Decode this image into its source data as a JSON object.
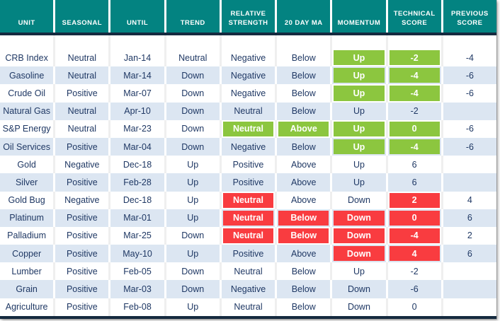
{
  "colors": {
    "header_bg": "#038381",
    "highlight_green": "#8CC63F",
    "highlight_red": "#F93C40",
    "row_stripe": "#DCE6F2",
    "body_text": "#1F3864",
    "divider_navy": "#152A3F"
  },
  "table": {
    "columns": [
      "UNIT",
      "SEASONAL",
      "UNTIL",
      "TREND",
      "RELATIVE STRENGTH",
      "20 DAY MA",
      "MOMENTUM",
      "TECHNICAL SCORE",
      "PREVIOUS SCORE"
    ],
    "column_keys": [
      "unit",
      "seasonal",
      "until",
      "trend",
      "relative-strength",
      "20-day-ma",
      "momentum",
      "technical-score",
      "previous-score"
    ],
    "rows": [
      {
        "cells": [
          {
            "t": "CRB Index"
          },
          {
            "t": "Neutral"
          },
          {
            "t": "Jan-14"
          },
          {
            "t": "Neutral"
          },
          {
            "t": "Negative"
          },
          {
            "t": "Below"
          },
          {
            "t": "Up",
            "h": "green"
          },
          {
            "t": "-2",
            "h": "green"
          },
          {
            "t": "-4"
          }
        ]
      },
      {
        "cells": [
          {
            "t": "Gasoline"
          },
          {
            "t": "Neutral"
          },
          {
            "t": "Mar-14"
          },
          {
            "t": "Down"
          },
          {
            "t": "Negative"
          },
          {
            "t": "Below"
          },
          {
            "t": "Up",
            "h": "green"
          },
          {
            "t": "-4",
            "h": "green"
          },
          {
            "t": "-6"
          }
        ]
      },
      {
        "cells": [
          {
            "t": "Crude Oil"
          },
          {
            "t": "Positive"
          },
          {
            "t": "Mar-07"
          },
          {
            "t": "Down"
          },
          {
            "t": "Negative"
          },
          {
            "t": "Below"
          },
          {
            "t": "Up",
            "h": "green"
          },
          {
            "t": "-4",
            "h": "green"
          },
          {
            "t": "-6"
          }
        ]
      },
      {
        "cells": [
          {
            "t": "Natural Gas"
          },
          {
            "t": "Neutral"
          },
          {
            "t": "Apr-10"
          },
          {
            "t": "Down"
          },
          {
            "t": "Neutral"
          },
          {
            "t": "Below"
          },
          {
            "t": "Up"
          },
          {
            "t": "-2"
          },
          {
            "t": ""
          }
        ]
      },
      {
        "cells": [
          {
            "t": "S&P Energy"
          },
          {
            "t": "Neutral"
          },
          {
            "t": "Mar-23"
          },
          {
            "t": "Down"
          },
          {
            "t": "Neutral",
            "h": "green"
          },
          {
            "t": "Above",
            "h": "green"
          },
          {
            "t": "Up",
            "h": "green"
          },
          {
            "t": "0",
            "h": "green"
          },
          {
            "t": "-6"
          }
        ]
      },
      {
        "cells": [
          {
            "t": "Oil Services"
          },
          {
            "t": "Positive"
          },
          {
            "t": "Mar-04"
          },
          {
            "t": "Down"
          },
          {
            "t": "Negative"
          },
          {
            "t": "Below"
          },
          {
            "t": "Up",
            "h": "green"
          },
          {
            "t": "-4",
            "h": "green"
          },
          {
            "t": "-6"
          }
        ]
      },
      {
        "cells": [
          {
            "t": "Gold"
          },
          {
            "t": "Negative"
          },
          {
            "t": "Dec-18"
          },
          {
            "t": "Up"
          },
          {
            "t": "Positive"
          },
          {
            "t": "Above"
          },
          {
            "t": "Up"
          },
          {
            "t": "6"
          },
          {
            "t": ""
          }
        ]
      },
      {
        "cells": [
          {
            "t": "Silver"
          },
          {
            "t": "Positive"
          },
          {
            "t": "Feb-28"
          },
          {
            "t": "Up"
          },
          {
            "t": "Positive"
          },
          {
            "t": "Above"
          },
          {
            "t": "Up"
          },
          {
            "t": "6"
          },
          {
            "t": ""
          }
        ]
      },
      {
        "cells": [
          {
            "t": "Gold Bug"
          },
          {
            "t": "Negative"
          },
          {
            "t": "Dec-18"
          },
          {
            "t": "Up"
          },
          {
            "t": "Neutral",
            "h": "red"
          },
          {
            "t": "Above"
          },
          {
            "t": "Down"
          },
          {
            "t": "2",
            "h": "red"
          },
          {
            "t": "4"
          }
        ]
      },
      {
        "cells": [
          {
            "t": "Platinum"
          },
          {
            "t": "Positive"
          },
          {
            "t": "Mar-01"
          },
          {
            "t": "Up"
          },
          {
            "t": "Neutral",
            "h": "red"
          },
          {
            "t": "Below",
            "h": "red"
          },
          {
            "t": "Down",
            "h": "red"
          },
          {
            "t": "0",
            "h": "red"
          },
          {
            "t": "6"
          }
        ]
      },
      {
        "cells": [
          {
            "t": "Palladium"
          },
          {
            "t": "Positive"
          },
          {
            "t": "Mar-25"
          },
          {
            "t": "Down"
          },
          {
            "t": "Neutral",
            "h": "red"
          },
          {
            "t": "Below",
            "h": "red"
          },
          {
            "t": "Down",
            "h": "red"
          },
          {
            "t": "-4",
            "h": "red"
          },
          {
            "t": "2"
          }
        ]
      },
      {
        "cells": [
          {
            "t": "Copper"
          },
          {
            "t": "Positive"
          },
          {
            "t": "May-10"
          },
          {
            "t": "Up"
          },
          {
            "t": "Positive"
          },
          {
            "t": "Above"
          },
          {
            "t": "Down",
            "h": "red"
          },
          {
            "t": "4",
            "h": "red"
          },
          {
            "t": "6"
          }
        ]
      },
      {
        "cells": [
          {
            "t": "Lumber"
          },
          {
            "t": "Positive"
          },
          {
            "t": "Feb-05"
          },
          {
            "t": "Down"
          },
          {
            "t": "Neutral"
          },
          {
            "t": "Below"
          },
          {
            "t": "Up"
          },
          {
            "t": "-2"
          },
          {
            "t": ""
          }
        ]
      },
      {
        "cells": [
          {
            "t": "Grain"
          },
          {
            "t": "Positive"
          },
          {
            "t": "Mar-03"
          },
          {
            "t": "Down"
          },
          {
            "t": "Negative"
          },
          {
            "t": "Below"
          },
          {
            "t": "Down"
          },
          {
            "t": "-6"
          },
          {
            "t": ""
          }
        ]
      },
      {
        "cells": [
          {
            "t": "Agriculture"
          },
          {
            "t": "Positive"
          },
          {
            "t": "Feb-08"
          },
          {
            "t": "Up"
          },
          {
            "t": "Neutral"
          },
          {
            "t": "Below"
          },
          {
            "t": "Down"
          },
          {
            "t": "0"
          },
          {
            "t": ""
          }
        ]
      }
    ]
  }
}
